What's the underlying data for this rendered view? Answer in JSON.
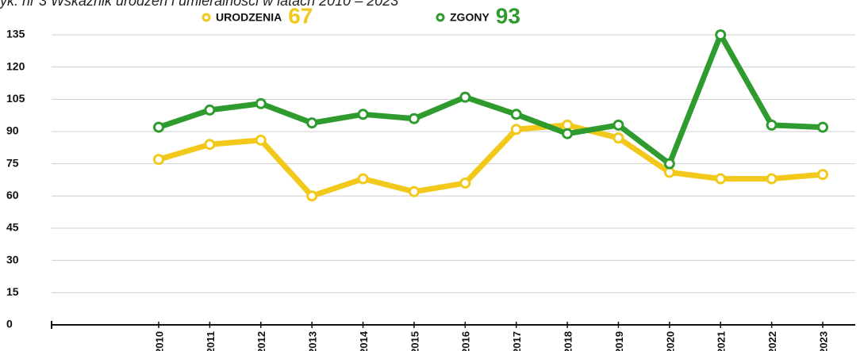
{
  "chart_data": {
    "type": "line",
    "title": "yk. nr 3 Wskaźnik urodzeń i umieralności w latach 2010 – 2023",
    "categories": [
      "2010",
      "2011",
      "2012",
      "2013",
      "2014",
      "2015",
      "2016",
      "2017",
      "2018",
      "2019",
      "2020",
      "2021",
      "2022",
      "2023"
    ],
    "series": [
      {
        "name": "URODZENIA",
        "legend_value": 67,
        "color": "#f2c91b",
        "values": [
          77,
          84,
          86,
          60,
          68,
          62,
          66,
          91,
          93,
          87,
          71,
          68,
          68,
          70
        ]
      },
      {
        "name": "ZGONY",
        "legend_value": 93,
        "color": "#2f9b2f",
        "values": [
          92,
          100,
          103,
          94,
          98,
          96,
          106,
          98,
          89,
          93,
          75,
          135,
          93,
          92
        ]
      }
    ],
    "ylim": [
      0,
      135
    ],
    "yticks": [
      0,
      15,
      30,
      45,
      60,
      75,
      90,
      105,
      120,
      135
    ],
    "grid": true
  }
}
